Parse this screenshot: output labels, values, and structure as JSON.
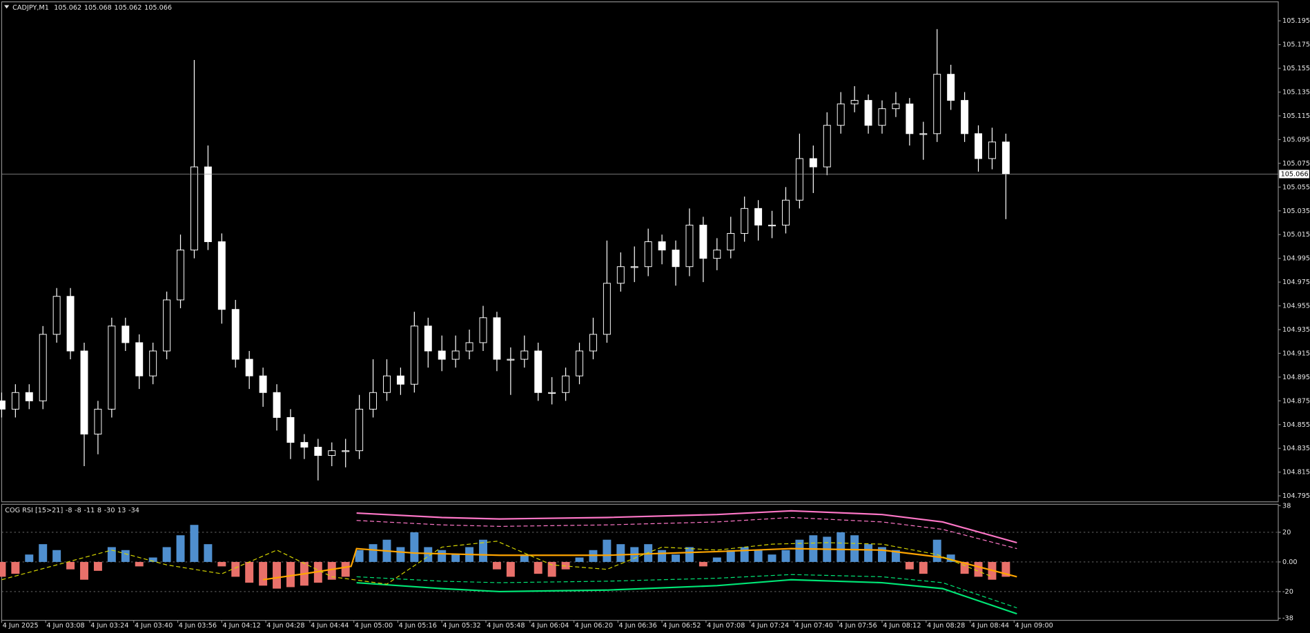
{
  "chart_data": [
    {
      "type": "candlestick",
      "title": "CADJPY,M1",
      "ohlc": [
        105.062,
        105.068,
        105.062,
        105.066
      ],
      "current_price": 105.066,
      "up_color": "#000000",
      "down_color": "#ffffff",
      "wick_color": "#ffffff",
      "xlim": [
        0,
        464
      ],
      "ylim": [
        104.79,
        105.211
      ],
      "yticks": [
        105.195,
        105.175,
        105.155,
        105.135,
        105.115,
        105.095,
        105.075,
        105.055,
        105.035,
        105.015,
        104.995,
        104.975,
        104.955,
        104.935,
        104.915,
        104.895,
        104.875,
        104.855,
        104.835,
        104.815,
        104.795
      ],
      "x": [
        0,
        5,
        10,
        15,
        20,
        25,
        30,
        35,
        40,
        45,
        50,
        55,
        60,
        65,
        70,
        75,
        80,
        85,
        90,
        95,
        100,
        105,
        110,
        115,
        120,
        125,
        130,
        135,
        140,
        145,
        150,
        155,
        160,
        165,
        170,
        175,
        180,
        185,
        190,
        195,
        200,
        205,
        210,
        215,
        220,
        225,
        230,
        235,
        240,
        245,
        250,
        255,
        260,
        265,
        270,
        275,
        280,
        285,
        290,
        295,
        300,
        305,
        310,
        315,
        320,
        325,
        330,
        335,
        340,
        345,
        350,
        355,
        360,
        365
      ],
      "open": [
        104.875,
        104.868,
        104.882,
        104.875,
        104.931,
        104.963,
        104.917,
        104.847,
        104.868,
        104.938,
        104.924,
        104.896,
        104.917,
        104.96,
        105.002,
        105.072,
        105.009,
        104.952,
        104.91,
        104.896,
        104.882,
        104.861,
        104.84,
        104.836,
        104.829,
        104.833,
        104.833,
        104.868,
        104.882,
        104.896,
        104.889,
        104.938,
        104.917,
        104.91,
        104.917,
        104.924,
        104.945,
        104.91,
        104.91,
        104.917,
        104.882,
        104.882,
        104.896,
        104.917,
        104.931,
        104.974,
        104.988,
        104.988,
        105.009,
        105.002,
        104.988,
        105.023,
        104.995,
        105.002,
        105.016,
        105.037,
        105.023,
        105.023,
        105.044,
        105.079,
        105.072,
        105.107,
        105.125,
        105.128,
        105.107,
        105.121,
        105.125,
        105.1,
        105.1,
        105.15,
        105.128,
        105.1,
        105.079,
        105.093
      ],
      "high": [
        104.882,
        104.889,
        104.889,
        104.938,
        104.97,
        104.97,
        104.924,
        104.875,
        104.945,
        104.945,
        104.931,
        104.924,
        104.967,
        105.015,
        105.162,
        105.09,
        105.016,
        104.96,
        104.917,
        104.903,
        104.889,
        104.868,
        104.847,
        104.843,
        104.84,
        104.843,
        104.88,
        104.91,
        104.91,
        104.903,
        104.95,
        104.945,
        104.93,
        104.93,
        104.935,
        104.955,
        104.95,
        104.92,
        104.93,
        104.924,
        104.895,
        104.903,
        104.924,
        104.945,
        105.01,
        105.0,
        105.005,
        105.02,
        105.015,
        105.01,
        105.037,
        105.03,
        105.012,
        105.03,
        105.047,
        105.044,
        105.035,
        105.055,
        105.1,
        105.09,
        105.118,
        105.135,
        105.14,
        105.133,
        105.128,
        105.135,
        105.13,
        105.11,
        105.188,
        105.158,
        105.135,
        105.107,
        105.105,
        105.1
      ],
      "low": [
        104.861,
        104.861,
        104.868,
        104.868,
        104.924,
        104.91,
        104.82,
        104.83,
        104.861,
        104.917,
        104.885,
        104.889,
        104.91,
        104.953,
        104.995,
        105.002,
        104.94,
        104.903,
        104.885,
        104.87,
        104.85,
        104.826,
        104.826,
        104.808,
        104.82,
        104.819,
        104.826,
        104.861,
        104.875,
        104.88,
        104.882,
        104.903,
        104.9,
        104.903,
        104.91,
        104.917,
        104.9,
        104.88,
        104.903,
        104.875,
        104.872,
        104.875,
        104.889,
        104.91,
        104.924,
        104.967,
        104.975,
        104.98,
        104.99,
        104.972,
        104.98,
        104.975,
        104.985,
        104.995,
        105.009,
        105.01,
        105.012,
        105.016,
        105.037,
        105.05,
        105.065,
        105.1,
        105.118,
        105.1,
        105.1,
        105.114,
        105.09,
        105.078,
        105.093,
        105.12,
        105.093,
        105.068,
        105.07,
        105.028
      ],
      "close": [
        104.868,
        104.882,
        104.875,
        104.931,
        104.963,
        104.917,
        104.847,
        104.868,
        104.938,
        104.924,
        104.896,
        104.917,
        104.96,
        105.002,
        105.072,
        105.009,
        104.952,
        104.91,
        104.896,
        104.882,
        104.861,
        104.84,
        104.836,
        104.829,
        104.833,
        104.833,
        104.868,
        104.882,
        104.896,
        104.889,
        104.938,
        104.917,
        104.91,
        104.917,
        104.924,
        104.945,
        104.91,
        104.91,
        104.917,
        104.882,
        104.882,
        104.896,
        104.917,
        104.931,
        104.974,
        104.988,
        104.988,
        105.009,
        105.002,
        104.988,
        105.023,
        104.995,
        105.002,
        105.016,
        105.037,
        105.023,
        105.023,
        105.044,
        105.079,
        105.072,
        105.107,
        105.125,
        105.128,
        105.107,
        105.121,
        105.125,
        105.1,
        105.1,
        105.15,
        105.128,
        105.1,
        105.079,
        105.093,
        105.066
      ]
    },
    {
      "type": "bar",
      "title": "COG RSI [15>21]",
      "params": [
        -8,
        -8,
        -11,
        8,
        -30,
        13,
        -34
      ],
      "xlim": [
        0,
        464
      ],
      "ylim": [
        -39.4,
        38.9
      ],
      "yticks": [
        38,
        20,
        {
          "value": 0,
          "label": "0.00"
        },
        -20,
        -38
      ],
      "grid": true,
      "xticks": [
        {
          "value": 0,
          "label": "4 Jun 2025"
        },
        {
          "value": 16,
          "label": "4 Jun 03:08"
        },
        {
          "value": 32,
          "label": "4 Jun 03:24"
        },
        {
          "value": 48,
          "label": "4 Jun 03:40"
        },
        {
          "value": 64,
          "label": "4 Jun 03:56"
        },
        {
          "value": 80,
          "label": "4 Jun 04:12"
        },
        {
          "value": 96,
          "label": "4 Jun 04:28"
        },
        {
          "value": 112,
          "label": "4 Jun 04:44"
        },
        {
          "value": 128,
          "label": "4 Jun 05:00"
        },
        {
          "value": 144,
          "label": "4 Jun 05:16"
        },
        {
          "value": 160,
          "label": "4 Jun 05:32"
        },
        {
          "value": 176,
          "label": "4 Jun 05:48"
        },
        {
          "value": 192,
          "label": "4 Jun 06:04"
        },
        {
          "value": 208,
          "label": "4 Jun 06:20"
        },
        {
          "value": 224,
          "label": "4 Jun 06:36"
        },
        {
          "value": 240,
          "label": "4 Jun 06:52"
        },
        {
          "value": 256,
          "label": "4 Jun 07:08"
        },
        {
          "value": 272,
          "label": "4 Jun 07:24"
        },
        {
          "value": 288,
          "label": "4 Jun 07:40"
        },
        {
          "value": 304,
          "label": "4 Jun 07:56"
        },
        {
          "value": 320,
          "label": "4 Jun 08:12"
        },
        {
          "value": 336,
          "label": "4 Jun 08:28"
        },
        {
          "value": 352,
          "label": "4 Jun 08:44"
        },
        {
          "value": 368,
          "label": "4 Jun 09:00"
        }
      ],
      "x": [
        0,
        5,
        10,
        15,
        20,
        25,
        30,
        35,
        40,
        45,
        50,
        55,
        60,
        65,
        70,
        75,
        80,
        85,
        90,
        95,
        100,
        105,
        110,
        115,
        120,
        125,
        130,
        135,
        140,
        145,
        150,
        155,
        160,
        165,
        170,
        175,
        180,
        185,
        190,
        195,
        200,
        205,
        210,
        215,
        220,
        225,
        230,
        235,
        240,
        245,
        250,
        255,
        260,
        265,
        270,
        275,
        280,
        285,
        290,
        295,
        300,
        305,
        310,
        315,
        320,
        325,
        330,
        335,
        340,
        345,
        350,
        355,
        360,
        365
      ],
      "values": [
        -10,
        -8,
        5,
        12,
        8,
        -5,
        -12,
        -6,
        10,
        8,
        -3,
        3,
        10,
        18,
        25,
        12,
        -3,
        -10,
        -14,
        -16,
        -18,
        -17,
        -16,
        -14,
        -12,
        -10,
        8,
        12,
        15,
        10,
        20,
        10,
        8,
        5,
        10,
        15,
        -5,
        -10,
        5,
        -8,
        -10,
        -5,
        3,
        8,
        15,
        12,
        10,
        12,
        8,
        5,
        10,
        -3,
        3,
        8,
        10,
        8,
        5,
        8,
        15,
        18,
        17,
        20,
        18,
        12,
        10,
        8,
        -5,
        -8,
        15,
        5,
        -8,
        -10,
        -12,
        -10
      ],
      "positive_color": "#4f8fcf",
      "negative_color": "#e8706a",
      "lines": [
        {
          "color": "#ff77c8",
          "dash": false,
          "x": [
            129,
            160,
            181,
            220,
            260,
            287,
            320,
            342,
            369
          ],
          "values": [
            33,
            30,
            29,
            30,
            32,
            34.5,
            32,
            27,
            13
          ]
        },
        {
          "color": "#ff77c8",
          "dash": true,
          "x": [
            129,
            160,
            181,
            220,
            260,
            287,
            320,
            342,
            369
          ],
          "values": [
            28,
            25,
            24,
            25,
            27,
            30,
            27,
            22,
            9
          ]
        },
        {
          "color": "#00e676",
          "dash": false,
          "x": [
            129,
            160,
            181,
            220,
            260,
            287,
            320,
            342,
            369
          ],
          "values": [
            -14,
            -18,
            -20,
            -19,
            -16,
            -12,
            -14,
            -18,
            -35
          ]
        },
        {
          "color": "#00e676",
          "dash": true,
          "x": [
            129,
            160,
            181,
            220,
            260,
            287,
            320,
            342,
            369
          ],
          "values": [
            -10,
            -13,
            -14,
            -13,
            -11,
            -8.5,
            -10,
            -14,
            -31
          ]
        },
        {
          "color": "#ffa500",
          "dash": false,
          "x": [
            95,
            110,
            127,
            129,
            150,
            181,
            220,
            260,
            287,
            320,
            342,
            369
          ],
          "values": [
            -12,
            -8,
            -3,
            9,
            6,
            4.5,
            4.5,
            7,
            9,
            8,
            3,
            -10
          ]
        },
        {
          "color": "#d4d400",
          "dash": true,
          "x": [
            0,
            20,
            40,
            60,
            80,
            100,
            120,
            140,
            160,
            180,
            200,
            220,
            240,
            260,
            280,
            300,
            320,
            340,
            360
          ],
          "values": [
            -12,
            -2,
            8,
            -2,
            -8,
            8,
            -10,
            -15,
            10,
            14,
            -2,
            -5,
            10,
            8,
            12,
            13,
            12,
            5,
            -10
          ]
        }
      ]
    }
  ]
}
